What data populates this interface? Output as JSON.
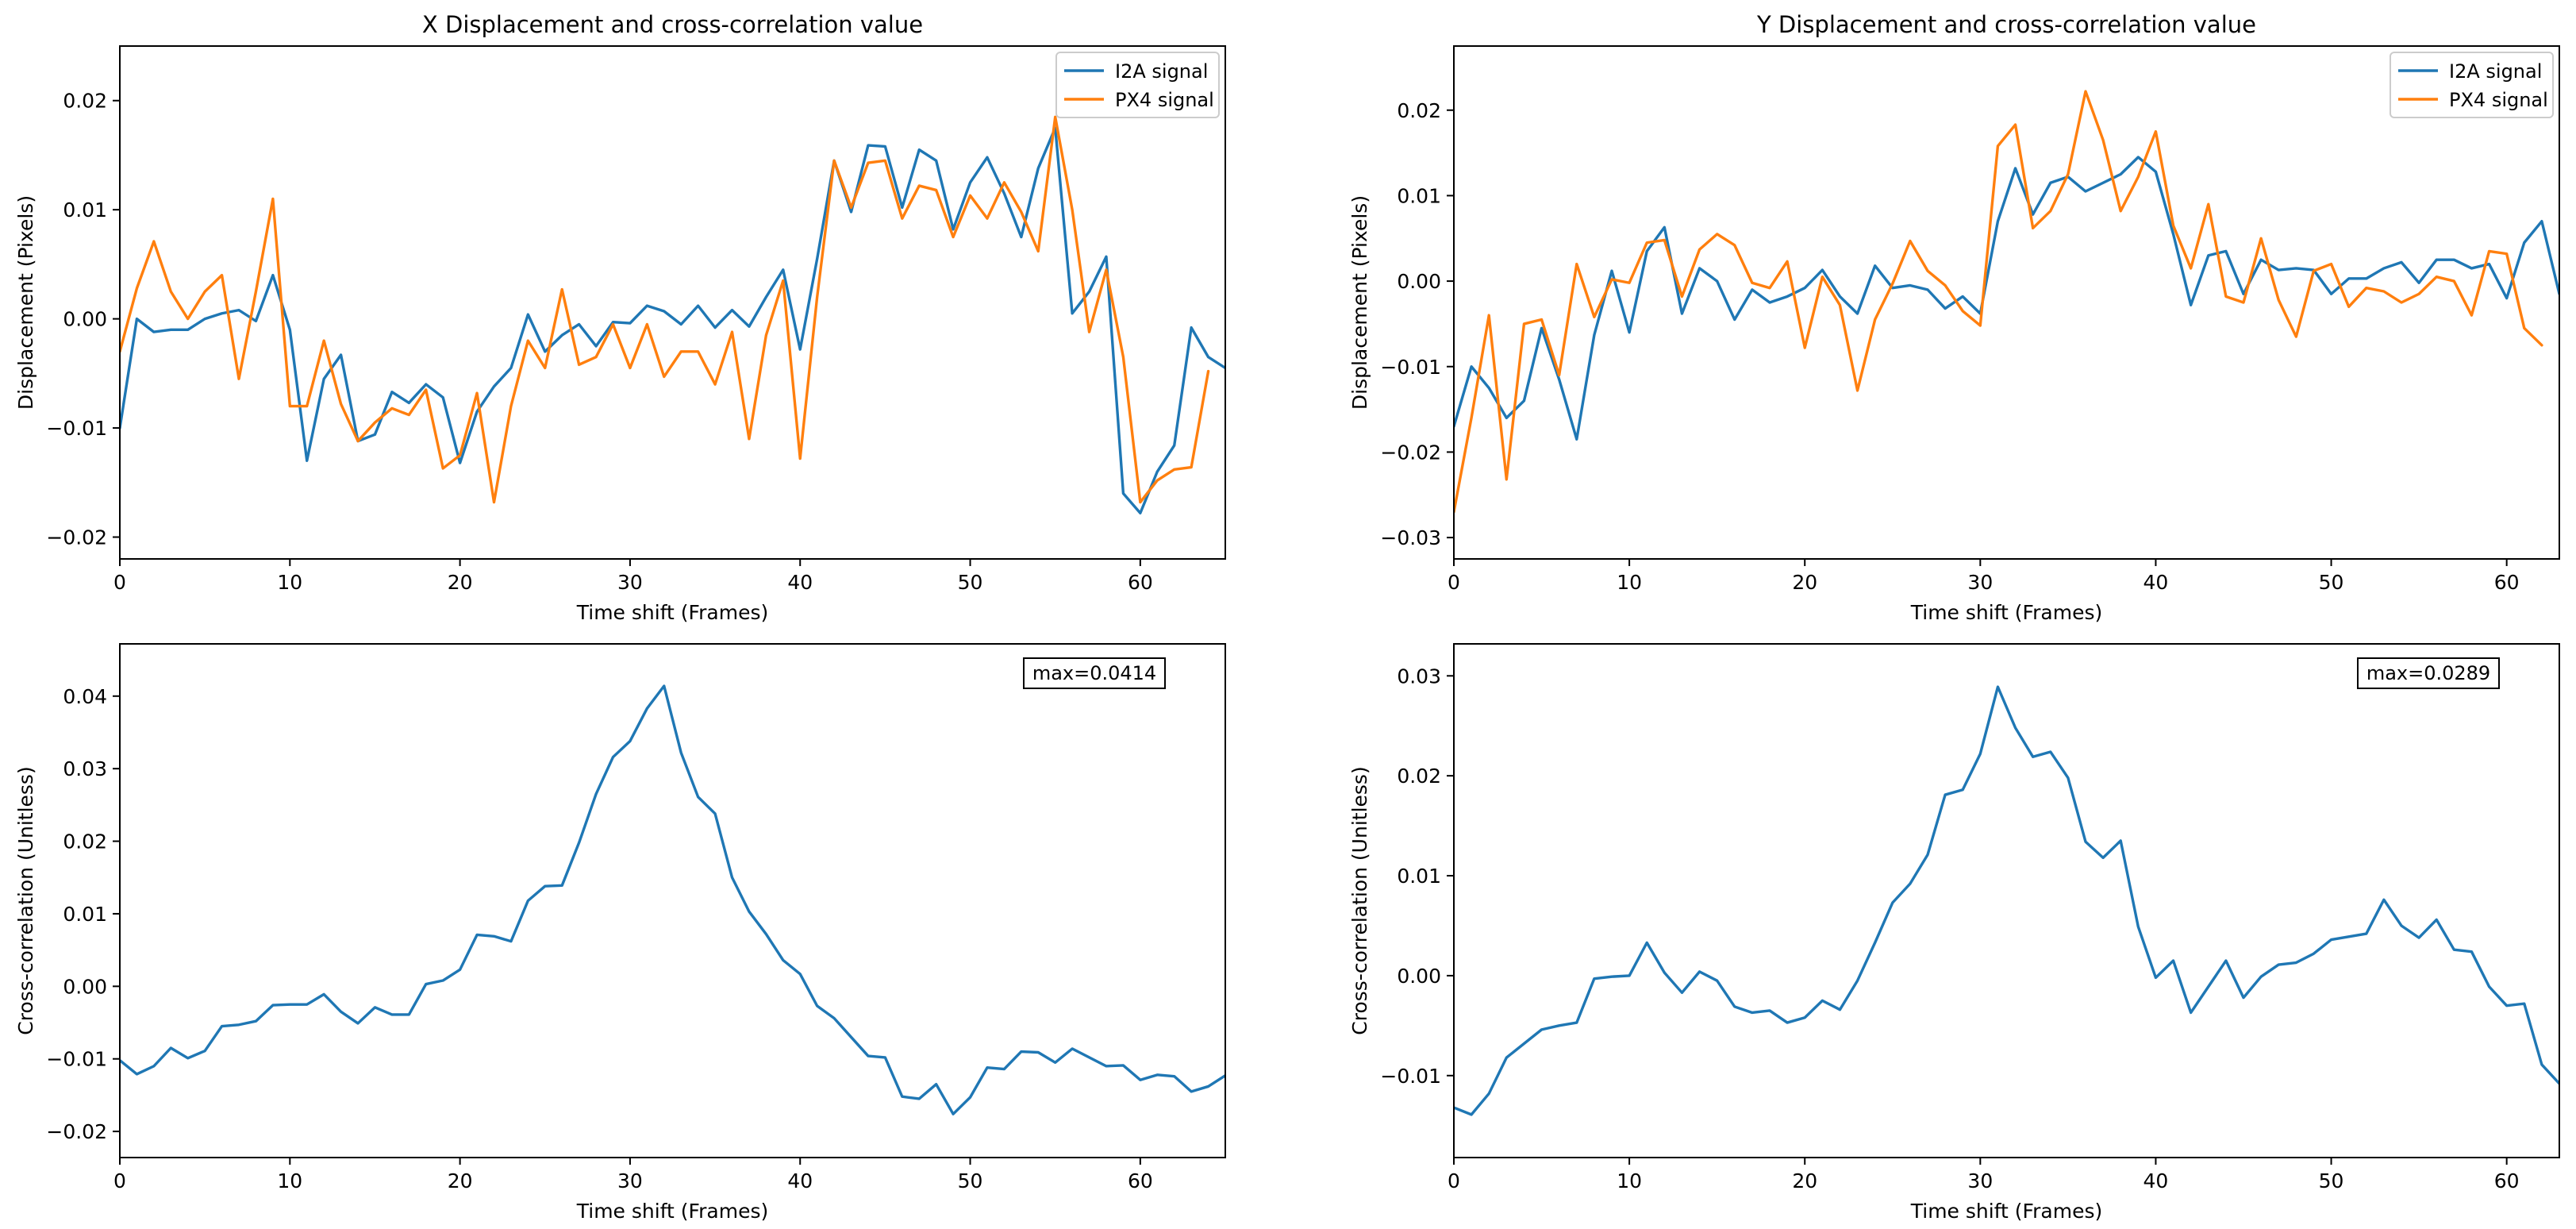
{
  "chart_data": [
    {
      "id": "x-disp",
      "type": "line",
      "title": "X Displacement and cross-correlation value",
      "xlabel": "Time shift (Frames)",
      "ylabel": "Displacement (Pixels)",
      "xlim": [
        0,
        65
      ],
      "ylim": [
        -0.022,
        0.025
      ],
      "xticks": [
        0,
        10,
        20,
        30,
        40,
        50,
        60
      ],
      "xtick_labels": [
        "0",
        "10",
        "20",
        "30",
        "40",
        "50",
        "60"
      ],
      "yticks": [
        -0.02,
        -0.01,
        0.0,
        0.01,
        0.02
      ],
      "ytick_labels": [
        "−0.02",
        "−0.01",
        "0.00",
        "0.01",
        "0.02"
      ],
      "legend": "top-right",
      "series": [
        {
          "name": "I2A signal",
          "color": "#1f77b4",
          "values": [
            -0.01,
            0.0,
            -0.0012,
            -0.001,
            -0.001,
            0.0,
            0.0005,
            0.0008,
            -0.0002,
            0.004,
            -0.001,
            -0.013,
            -0.0055,
            -0.0033,
            -0.0112,
            -0.0106,
            -0.0067,
            -0.0077,
            -0.006,
            -0.0072,
            -0.0132,
            -0.0085,
            -0.0062,
            -0.0045,
            0.0004,
            -0.003,
            -0.0015,
            -0.0005,
            -0.0025,
            -0.0003,
            -0.0004,
            0.0012,
            0.0007,
            -0.0005,
            0.0012,
            -0.0008,
            0.0008,
            -0.0007,
            0.002,
            0.0045,
            -0.0028,
            0.0055,
            0.0145,
            0.0098,
            0.0159,
            0.0158,
            0.0102,
            0.0155,
            0.0145,
            0.0082,
            0.0125,
            0.0148,
            0.0115,
            0.0075,
            0.0138,
            0.0175,
            0.0005,
            0.0025,
            0.0057,
            -0.016,
            -0.0178,
            -0.014,
            -0.0116,
            -0.0008,
            -0.0035,
            -0.0045
          ]
        },
        {
          "name": "PX4 signal",
          "color": "#ff7f0e",
          "values": [
            -0.003,
            0.0028,
            0.0071,
            0.0025,
            0.0,
            0.0025,
            0.004,
            -0.0055,
            0.0025,
            0.011,
            -0.008,
            -0.008,
            -0.002,
            -0.0078,
            -0.0112,
            -0.0095,
            -0.0082,
            -0.0088,
            -0.0065,
            -0.0137,
            -0.0125,
            -0.0068,
            -0.0168,
            -0.008,
            -0.002,
            -0.0045,
            0.0027,
            -0.0042,
            -0.0035,
            -0.0005,
            -0.0045,
            -0.0005,
            -0.0053,
            -0.003,
            -0.003,
            -0.006,
            -0.0012,
            -0.011,
            -0.0015,
            0.0035,
            -0.0128,
            0.002,
            0.0145,
            0.0102,
            0.0143,
            0.0145,
            0.0092,
            0.0122,
            0.0118,
            0.0075,
            0.0113,
            0.0092,
            0.0125,
            0.0098,
            0.0062,
            0.0185,
            0.01,
            -0.0012,
            0.0045,
            -0.0035,
            -0.0168,
            -0.0148,
            -0.0138,
            -0.0136,
            -0.0048
          ]
        }
      ]
    },
    {
      "id": "y-disp",
      "type": "line",
      "title": "Y Displacement and cross-correlation value",
      "xlabel": "Time shift (Frames)",
      "ylabel": "Displacement (Pixels)",
      "xlim": [
        0,
        63
      ],
      "ylim": [
        -0.0325,
        0.0275
      ],
      "xticks": [
        0,
        10,
        20,
        30,
        40,
        50,
        60
      ],
      "xtick_labels": [
        "0",
        "10",
        "20",
        "30",
        "40",
        "50",
        "60"
      ],
      "yticks": [
        -0.03,
        -0.02,
        -0.01,
        0.0,
        0.01,
        0.02
      ],
      "ytick_labels": [
        "−0.03",
        "−0.02",
        "−0.01",
        "0.00",
        "0.01",
        "0.02"
      ],
      "legend": "top-right",
      "series": [
        {
          "name": "I2A signal",
          "color": "#1f77b4",
          "values": [
            -0.017,
            -0.01,
            -0.0125,
            -0.016,
            -0.014,
            -0.0055,
            -0.0115,
            -0.0185,
            -0.0063,
            0.0012,
            -0.006,
            0.0035,
            0.0063,
            -0.0038,
            0.0015,
            0.0,
            -0.0045,
            -0.001,
            -0.0025,
            -0.0018,
            -0.0008,
            0.0013,
            -0.0018,
            -0.0038,
            0.0018,
            -0.0008,
            -0.0005,
            -0.001,
            -0.0032,
            -0.0018,
            -0.0038,
            0.007,
            0.0132,
            0.0078,
            0.0115,
            0.0122,
            0.0105,
            0.0115,
            0.0125,
            0.0145,
            0.0128,
            0.0055,
            -0.0028,
            0.003,
            0.0035,
            -0.0015,
            0.0025,
            0.0013,
            0.0015,
            0.0013,
            -0.0015,
            0.0003,
            0.0003,
            0.0015,
            0.0022,
            -0.0002,
            0.0025,
            0.0025,
            0.0015,
            0.002,
            -0.002,
            0.0045,
            0.007,
            -0.0015
          ]
        },
        {
          "name": "PX4 signal",
          "color": "#ff7f0e",
          "values": [
            -0.027,
            -0.016,
            -0.004,
            -0.0232,
            -0.005,
            -0.0045,
            -0.011,
            0.002,
            -0.0042,
            0.0002,
            -0.0002,
            0.0045,
            0.0048,
            -0.0018,
            0.0037,
            0.0055,
            0.0042,
            -0.0002,
            -0.0008,
            0.0023,
            -0.0078,
            0.0005,
            -0.0028,
            -0.0128,
            -0.0045,
            -0.0003,
            0.0047,
            0.0012,
            -0.0005,
            -0.0035,
            -0.0052,
            0.0158,
            0.0183,
            0.0062,
            0.0082,
            0.0125,
            0.0222,
            0.0165,
            0.0082,
            0.0122,
            0.0175,
            0.0065,
            0.0015,
            0.009,
            -0.0018,
            -0.0025,
            0.005,
            -0.0022,
            -0.0065,
            0.0012,
            0.002,
            -0.003,
            -0.0008,
            -0.0012,
            -0.0025,
            -0.0015,
            0.0005,
            0.0,
            -0.004,
            0.0035,
            0.0032,
            -0.0055,
            -0.0075
          ]
        }
      ]
    },
    {
      "id": "x-xcorr",
      "type": "line",
      "title": "",
      "xlabel": "Time shift (Frames)",
      "ylabel": "Cross-correlation (Unitless)",
      "xlim": [
        0,
        65
      ],
      "ylim": [
        -0.0236,
        0.0472
      ],
      "xticks": [
        0,
        10,
        20,
        30,
        40,
        50,
        60
      ],
      "xtick_labels": [
        "0",
        "10",
        "20",
        "30",
        "40",
        "50",
        "60"
      ],
      "yticks": [
        -0.02,
        -0.01,
        0.0,
        0.01,
        0.02,
        0.03,
        0.04
      ],
      "ytick_labels": [
        "−0.02",
        "−0.01",
        "0.00",
        "0.01",
        "0.02",
        "0.03",
        "0.04"
      ],
      "annotation": "max=0.0414",
      "series": [
        {
          "name": "cross-correlation",
          "color": "#1f77b4",
          "values": [
            -0.0102,
            -0.0121,
            -0.011,
            -0.0085,
            -0.0099,
            -0.0089,
            -0.0055,
            -0.0053,
            -0.0048,
            -0.0026,
            -0.0025,
            -0.0025,
            -0.0011,
            -0.0035,
            -0.0051,
            -0.0029,
            -0.0039,
            -0.0039,
            0.0003,
            0.0008,
            0.0023,
            0.0071,
            0.0069,
            0.0062,
            0.0118,
            0.0138,
            0.0139,
            0.0198,
            0.0265,
            0.0316,
            0.0338,
            0.0383,
            0.0414,
            0.0322,
            0.0261,
            0.0238,
            0.015,
            0.0103,
            0.0072,
            0.0036,
            0.0017,
            -0.0027,
            -0.0044,
            -0.007,
            -0.0096,
            -0.0098,
            -0.0152,
            -0.0155,
            -0.0135,
            -0.0176,
            -0.0153,
            -0.0112,
            -0.0114,
            -0.009,
            -0.0091,
            -0.0105,
            -0.0086,
            -0.0098,
            -0.011,
            -0.0109,
            -0.0129,
            -0.0122,
            -0.0124,
            -0.0145,
            -0.0138,
            -0.0123
          ]
        }
      ]
    },
    {
      "id": "y-xcorr",
      "type": "line",
      "title": "",
      "xlabel": "Time shift (Frames)",
      "ylabel": "Cross-correlation (Unitless)",
      "xlim": [
        0,
        63
      ],
      "ylim": [
        -0.0182,
        0.0332
      ],
      "xticks": [
        0,
        10,
        20,
        30,
        40,
        50,
        60
      ],
      "xtick_labels": [
        "0",
        "10",
        "20",
        "30",
        "40",
        "50",
        "60"
      ],
      "yticks": [
        -0.01,
        0.0,
        0.01,
        0.02,
        0.03
      ],
      "ytick_labels": [
        "−0.01",
        "0.00",
        "0.01",
        "0.02",
        "0.03"
      ],
      "annotation": "max=0.0289",
      "series": [
        {
          "name": "cross-correlation",
          "color": "#1f77b4",
          "values": [
            -0.0132,
            -0.0139,
            -0.0118,
            -0.0082,
            -0.0068,
            -0.0054,
            -0.005,
            -0.0047,
            -0.0003,
            -0.0001,
            0.0,
            0.0033,
            0.0003,
            -0.0017,
            0.0004,
            -0.0005,
            -0.0031,
            -0.0037,
            -0.0035,
            -0.0047,
            -0.0042,
            -0.0025,
            -0.0034,
            -0.0005,
            0.0033,
            0.0073,
            0.0092,
            0.0121,
            0.0181,
            0.0186,
            0.0222,
            0.0289,
            0.0248,
            0.0219,
            0.0224,
            0.0198,
            0.0134,
            0.0118,
            0.0135,
            0.0049,
            -0.0002,
            0.0015,
            -0.0037,
            -0.0011,
            0.0015,
            -0.0022,
            -0.0001,
            0.0011,
            0.0013,
            0.0022,
            0.0036,
            0.0039,
            0.0042,
            0.0076,
            0.005,
            0.0038,
            0.0056,
            0.0026,
            0.0024,
            -0.0011,
            -0.003,
            -0.0028,
            -0.0089,
            -0.0108
          ]
        }
      ]
    }
  ]
}
